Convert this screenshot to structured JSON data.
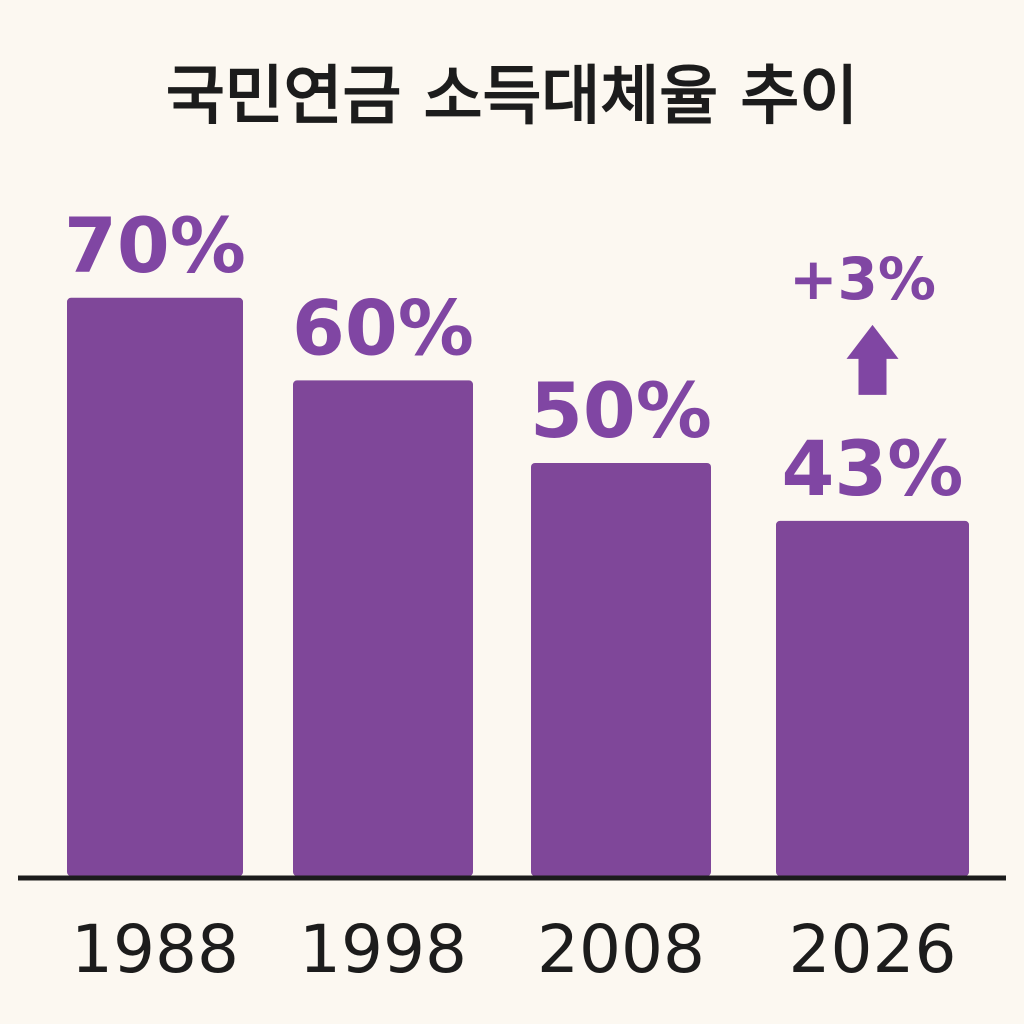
{
  "chart_data": {
    "type": "bar",
    "title": "국민연금 소득대체율 추이",
    "categories": [
      "1988",
      "1998",
      "2008",
      "2026"
    ],
    "values": [
      70,
      60,
      50,
      43
    ],
    "value_labels": [
      "70%",
      "60%",
      "50%",
      "43%"
    ],
    "unit": "%",
    "ylim": [
      0,
      80
    ],
    "grid": false,
    "annotation": {
      "category": "2026",
      "text": "+3%",
      "direction": "up"
    },
    "colors": {
      "bar": "#7f4799",
      "label": "#8046a3",
      "axis": "#1c1c1c",
      "text": "#1c1c1c",
      "background": "#fcf8f1"
    }
  }
}
